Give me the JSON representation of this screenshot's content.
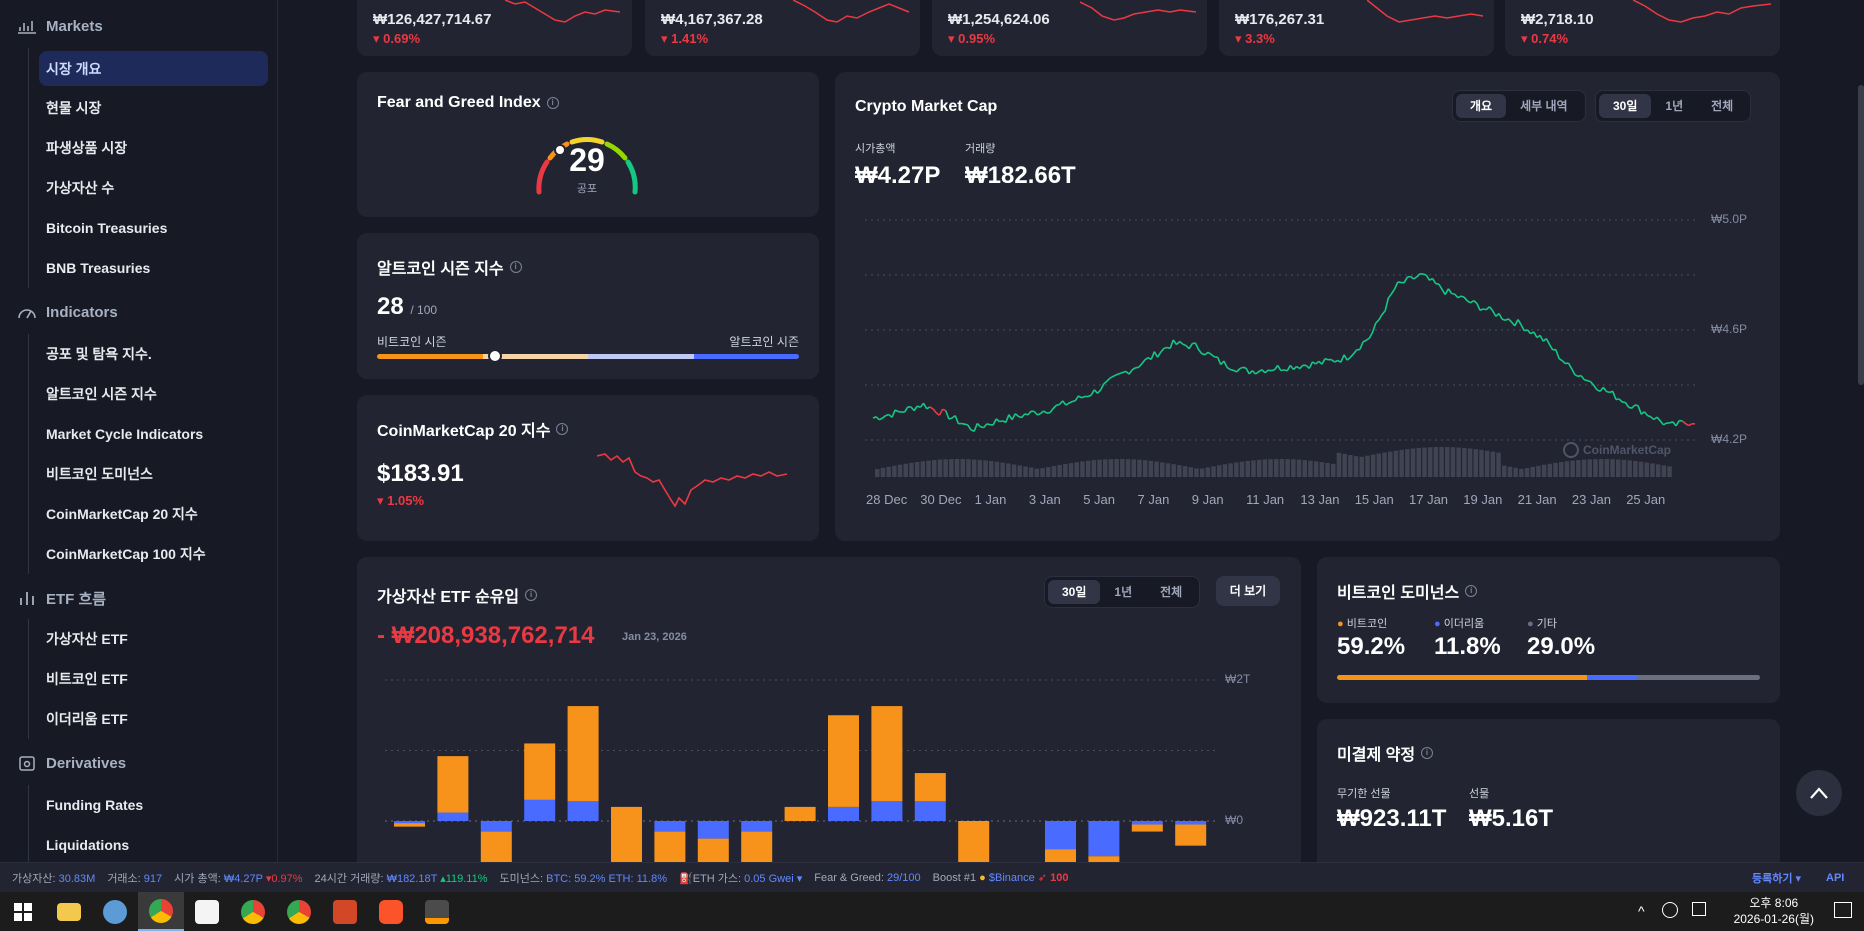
{
  "sidebar": {
    "sections": [
      {
        "label": "Markets",
        "icon": "bar-chart-icon",
        "items": [
          "시장 개요",
          "현물 시장",
          "파생상품 시장",
          "가상자산 수",
          "Bitcoin Treasuries",
          "BNB Treasuries"
        ]
      },
      {
        "label": "Indicators",
        "icon": "gauge-icon",
        "items": [
          "공포 및 탐욕 지수.",
          "알트코인 시즌 지수",
          "Market Cycle Indicators",
          "비트코인 도미넌스",
          "CoinMarketCap 20 지수",
          "CoinMarketCap 100 지수"
        ]
      },
      {
        "label": "ETF 흐름",
        "icon": "bars-icon",
        "items": [
          "가상자산 ETF",
          "비트코인 ETF",
          "이더리움 ETF"
        ]
      },
      {
        "label": "Derivatives",
        "icon": "derivatives-icon",
        "items": [
          "Funding Rates",
          "Liquidations"
        ]
      }
    ]
  },
  "top_cards": [
    {
      "price": "₩126,427,714.67",
      "change": "0.69%"
    },
    {
      "price": "₩4,167,367.28",
      "change": "1.41%"
    },
    {
      "price": "₩1,254,624.06",
      "change": "0.95%"
    },
    {
      "price": "₩176,267.31",
      "change": "3.3%"
    },
    {
      "price": "₩2,718.10",
      "change": "0.74%"
    }
  ],
  "fear_greed": {
    "title": "Fear and Greed Index",
    "value": "29",
    "label": "공포",
    "level": 0.29
  },
  "altcoin": {
    "title": "알트코인 시즌 지수",
    "value": "28",
    "max": "/ 100",
    "left_label": "비트코인 시즌",
    "right_label": "알트코인 시즌",
    "level": 0.28
  },
  "cmc20": {
    "title": "CoinMarketCap 20 지수",
    "price": "$183.91",
    "change": "1.05%"
  },
  "market_cap": {
    "title": "Crypto Market Cap",
    "tabs": [
      "개요",
      "세부 내역"
    ],
    "ranges": [
      "30일",
      "1년",
      "전체"
    ],
    "cap_label": "시가총액",
    "cap_value": "₩4.27P",
    "vol_label": "거래량",
    "vol_value": "₩182.66T",
    "watermark": "CoinMarketCap",
    "chart_data": {
      "type": "line",
      "x_ticks": [
        "28 Dec",
        "30 Dec",
        "1 Jan",
        "3 Jan",
        "5 Jan",
        "7 Jan",
        "9 Jan",
        "11 Jan",
        "13 Jan",
        "15 Jan",
        "17 Jan",
        "19 Jan",
        "21 Jan",
        "23 Jan",
        "25 Jan"
      ],
      "y_ticks": [
        "₩5.0P",
        "₩4.6P",
        "₩4.2P"
      ],
      "ylim": [
        4.2,
        5.0
      ],
      "values": [
        4.28,
        4.3,
        4.33,
        4.29,
        4.24,
        4.27,
        4.29,
        4.31,
        4.34,
        4.38,
        4.44,
        4.49,
        4.55,
        4.54,
        4.48,
        4.45,
        4.46,
        4.47,
        4.48,
        4.5,
        4.58,
        4.76,
        4.8,
        4.74,
        4.7,
        4.66,
        4.62,
        4.56,
        4.46,
        4.4,
        4.35,
        4.3,
        4.25,
        4.27
      ]
    }
  },
  "etf": {
    "title": "가상자산 ETF 순유입",
    "value": "- ₩208,938,762,714",
    "date": "Jan 23, 2026",
    "ranges": [
      "30일",
      "1년",
      "전체"
    ],
    "more": "더 보기",
    "chart_data": {
      "type": "bar",
      "y_ticks": [
        "₩2T",
        "₩0"
      ],
      "series": [
        {
          "values": [
            -0.05,
            0.8,
            -0.6,
            0.8,
            1.35,
            -0.9,
            -0.8,
            -0.5,
            -0.8,
            0.2,
            1.3,
            1.35,
            0.4,
            -0.9,
            0,
            -0.6,
            -0.6,
            -0.1,
            -0.3
          ]
        },
        {
          "values": [
            -0.03,
            0.12,
            -0.15,
            0.3,
            0.28,
            0.2,
            -0.15,
            -0.25,
            -0.15,
            0,
            0.2,
            0.28,
            0.28,
            0,
            0,
            -0.4,
            -0.5,
            -0.05,
            -0.05
          ]
        }
      ]
    }
  },
  "dominance": {
    "title": "비트코인 도미넌스",
    "items": [
      {
        "label": "비트코인",
        "value": "59.2%",
        "color": "#f7931a",
        "share": 59.2
      },
      {
        "label": "이더리움",
        "value": "11.8%",
        "color": "#4a6bff",
        "share": 11.8
      },
      {
        "label": "기타",
        "value": "29.0%",
        "color": "#6b7080",
        "share": 29.0
      }
    ]
  },
  "open_interest": {
    "title": "미결제 약정",
    "perp_label": "무기한 선물",
    "perp_value": "₩923.11T",
    "fut_label": "선물",
    "fut_value": "₩5.16T"
  },
  "ticker": {
    "assets_label": "가상자산:",
    "assets": "30.83M",
    "exch_label": "거래소:",
    "exch": "917",
    "cap_label": "시가 총액:",
    "cap": "₩4.27P",
    "cap_chg": "0.97%",
    "vol_label": "24시간 거래량:",
    "vol": "₩182.18T",
    "vol_chg": "119.11%",
    "dom_label": "도미넌스:",
    "dom": "BTC: 59.2% ETH: 11.8%",
    "gas_label": "ETH 가스:",
    "gas": "0.05 Gwei",
    "fg_label": "Fear & Greed:",
    "fg": "29/100",
    "boost_label": "Boost #1",
    "boost": "$Binance",
    "boost_n": "100",
    "register": "등록하기",
    "api": "API"
  },
  "clock": {
    "time": "오후 8:06",
    "date": "2026-01-26(월)"
  }
}
